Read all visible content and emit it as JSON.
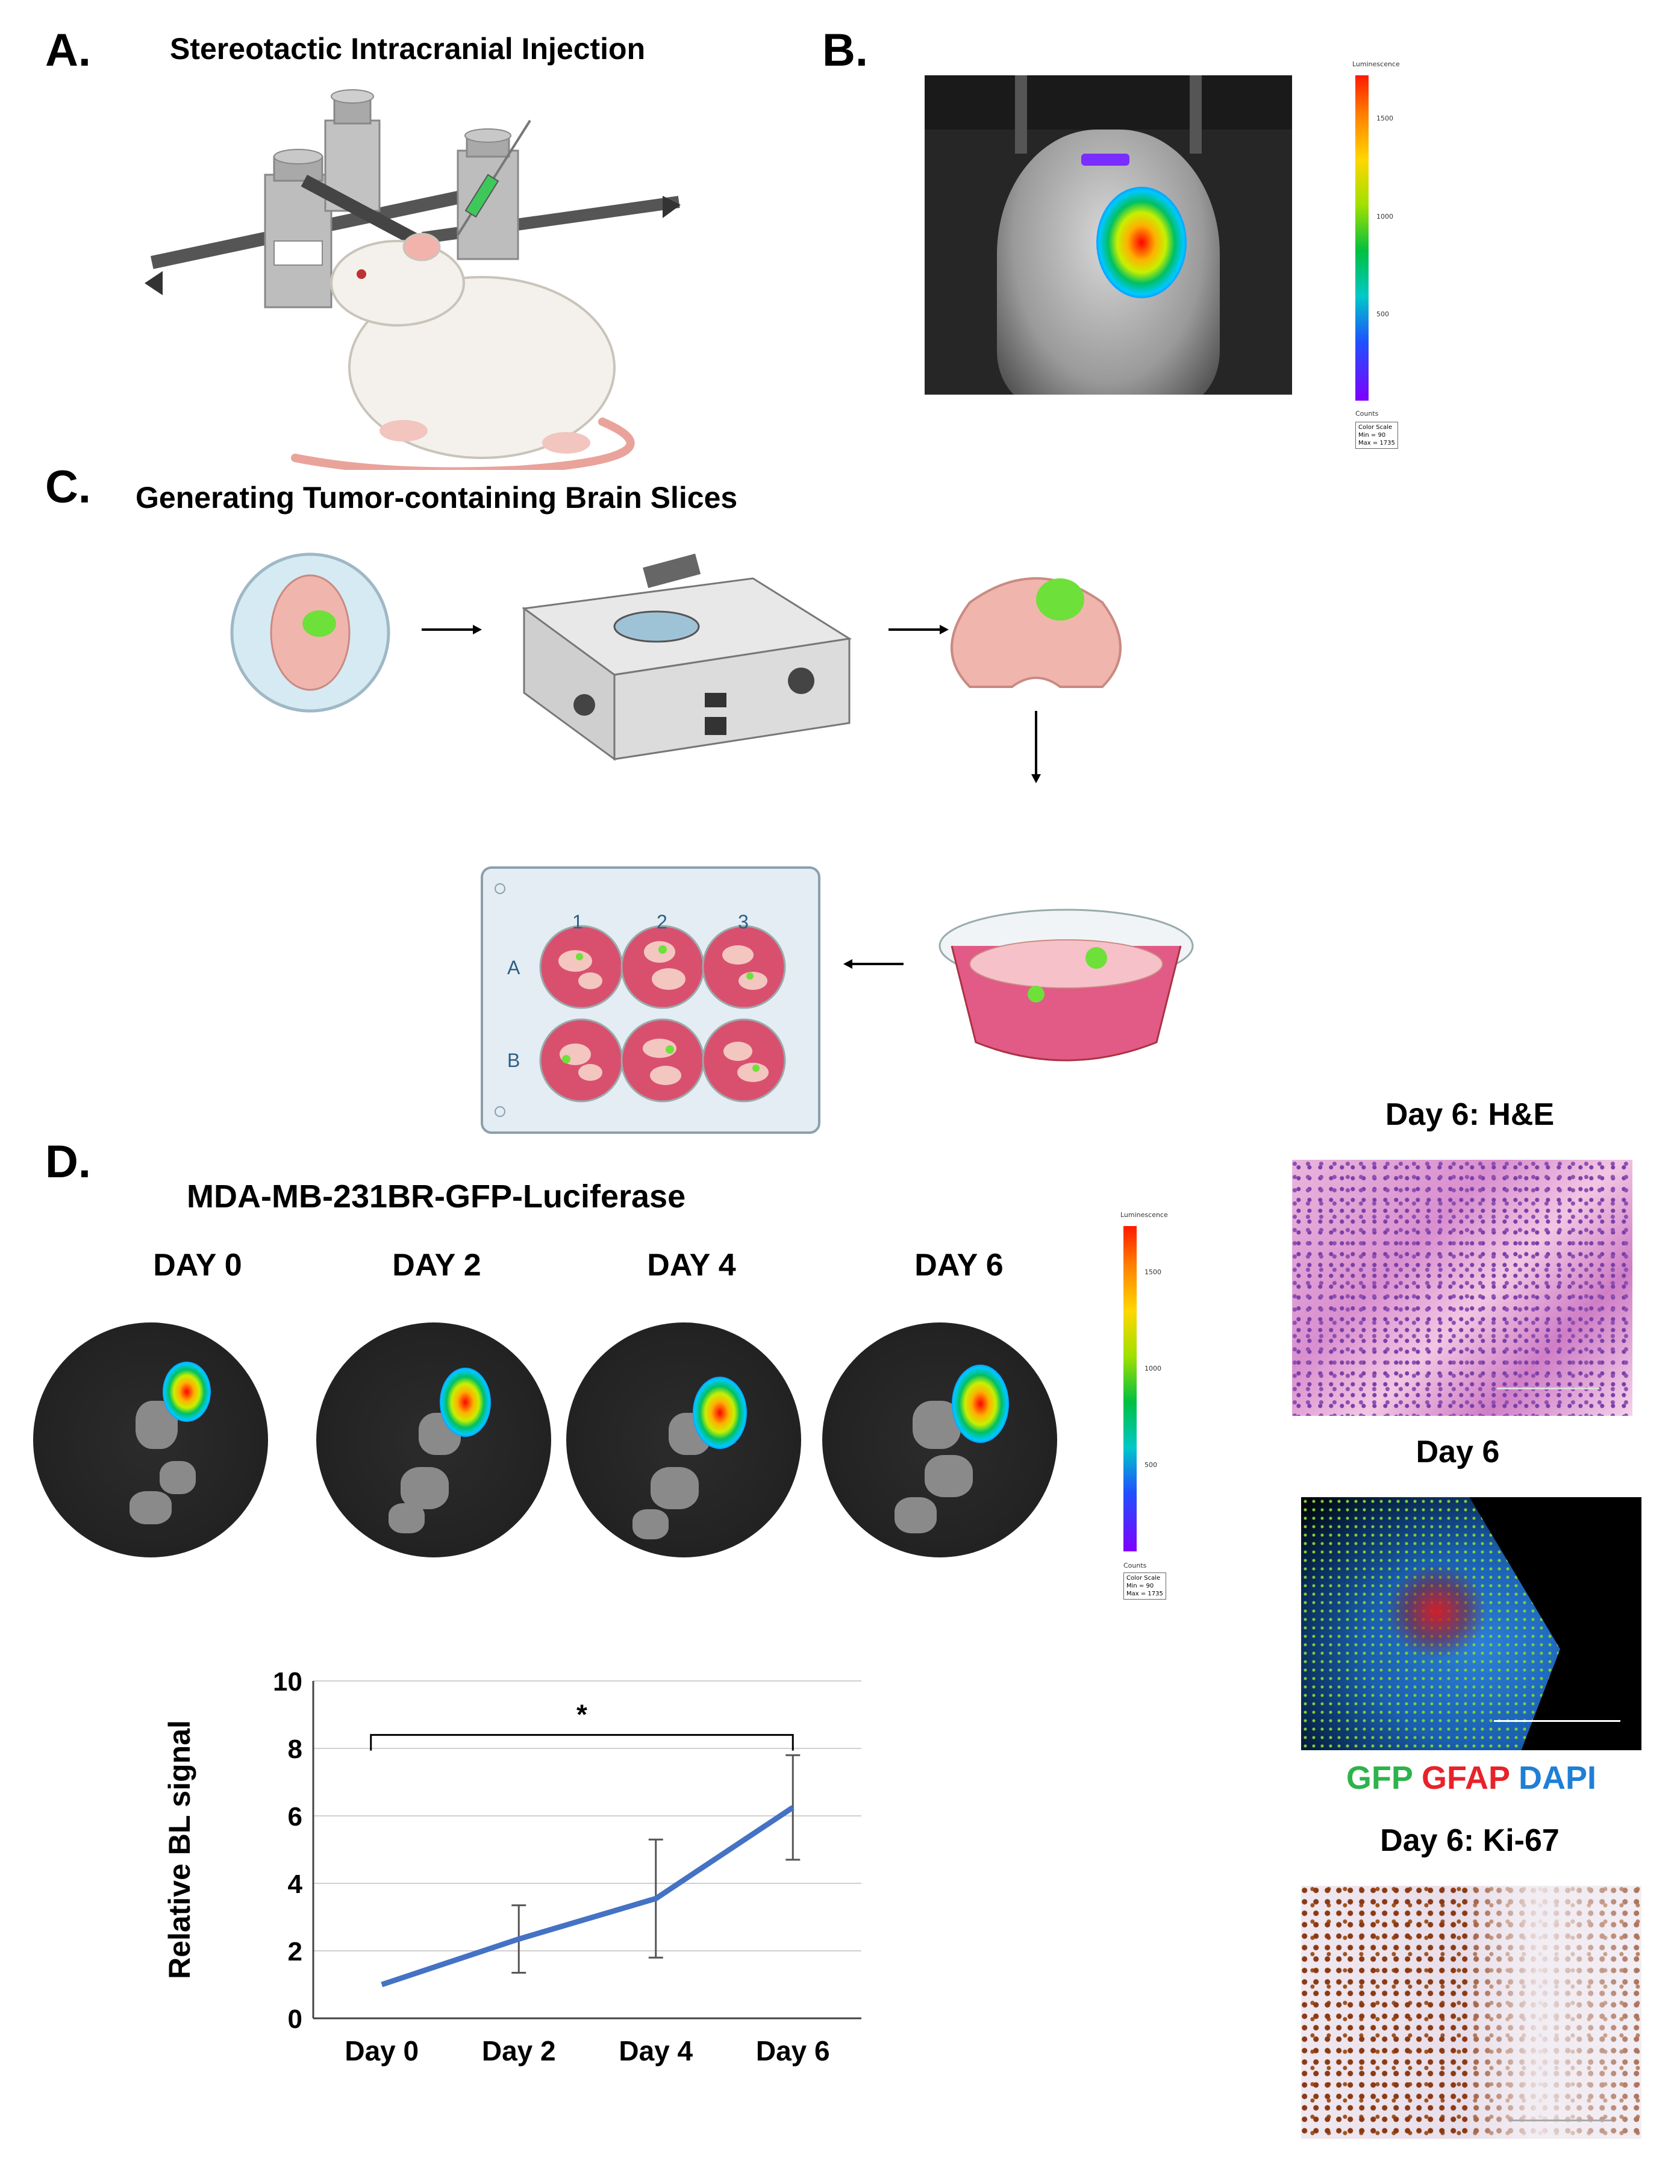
{
  "panels": {
    "a": {
      "letter": "A.",
      "title": "Stereotactic Intracranial Injection"
    },
    "b": {
      "letter": "B.",
      "colorbar": {
        "top_label": "Luminescence",
        "ticks": [
          "1500",
          "1000",
          "500"
        ],
        "units": "Counts",
        "scale_title": "Color Scale",
        "min_text": "Min = 90",
        "max_text": "Max = 1735"
      }
    },
    "c": {
      "letter": "C.",
      "title": "Generating Tumor-containing Brain Slices",
      "plate": {
        "cols": [
          "1",
          "2",
          "3"
        ],
        "rows": [
          "A",
          "B"
        ]
      }
    },
    "d": {
      "letter": "D.",
      "title": "MDA-MB-231BR-GFP-Luciferase",
      "days": [
        "DAY 0",
        "DAY 2",
        "DAY 4",
        "DAY 6"
      ],
      "colorbar": {
        "top_label": "Luminescence",
        "ticks": [
          "1500",
          "1000",
          "500"
        ],
        "units": "Counts",
        "scale_title": "Color Scale",
        "min_text": "Min = 90",
        "max_text": "Max = 1735"
      },
      "significance": "*"
    }
  },
  "stains": {
    "he": "Day 6: H&E",
    "if_title": "Day 6",
    "if_legend": {
      "gfp": "GFP",
      "gfap": "GFAP",
      "dapi": "DAPI"
    },
    "ki67": "Day 6: Ki-67"
  },
  "colors": {
    "line": "#4472C4",
    "gfp": "#2db34a",
    "gfap": "#e8222a",
    "dapi": "#1f7fd6"
  },
  "chart_data": {
    "type": "line",
    "categories": [
      "Day 0",
      "Day 2",
      "Day 4",
      "Day 6"
    ],
    "series": [
      {
        "values": [
          1.0,
          2.35,
          3.55,
          6.25
        ]
      }
    ],
    "error": [
      0.0,
      1.0,
      1.75,
      1.55
    ],
    "ylabel": "Relative BL signal",
    "xlabel": "",
    "ylim": [
      0,
      10
    ],
    "yticks": [
      0,
      2,
      4,
      6,
      8,
      10
    ],
    "grid": true,
    "annotation": "*"
  }
}
